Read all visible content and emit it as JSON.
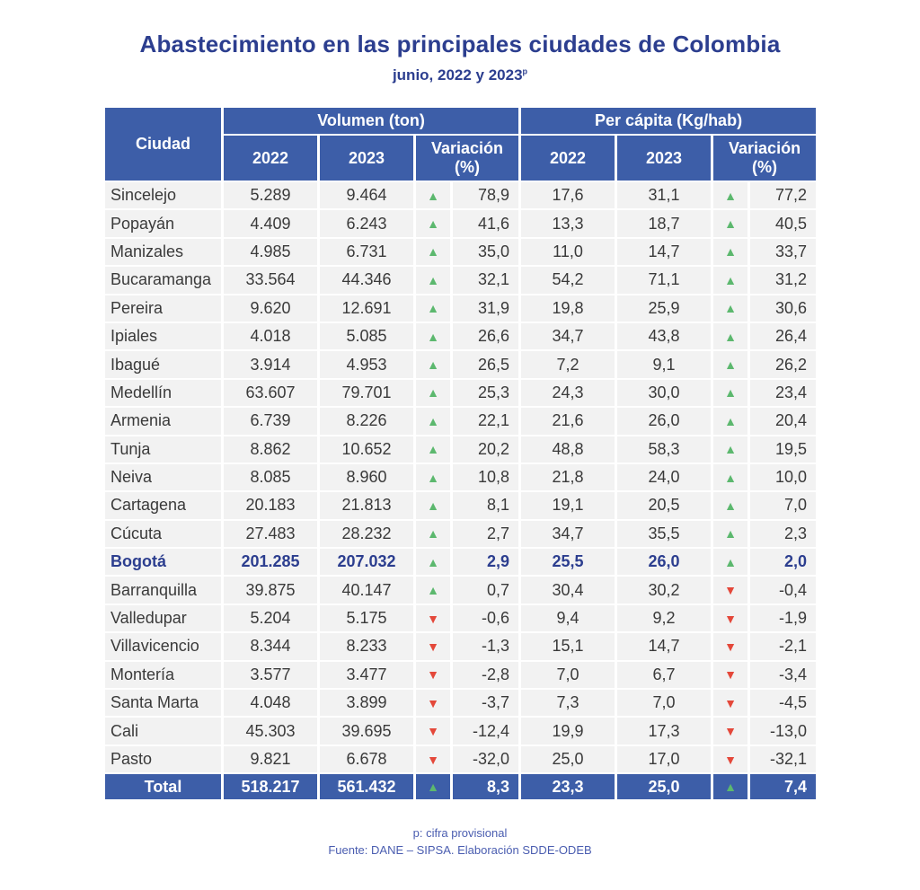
{
  "title": "Abastecimiento en las principales ciudades de Colombia",
  "subtitle": "junio, 2022 y 2023",
  "subtitle_mark": "p",
  "headers": {
    "city": "Ciudad",
    "volume_group": "Volumen (ton)",
    "percapita_group": "Per cápita (Kg/hab)",
    "y2022": "2022",
    "y2023": "2023",
    "variation": "Variación (%)"
  },
  "colors": {
    "header": "#3d5ea8",
    "up": "#5cb86e",
    "down": "#e4483a",
    "title": "#2c3e8f"
  },
  "rows": [
    {
      "city": "Sincelejo",
      "v2022": "5.289",
      "v2023": "9.464",
      "vdir": "up",
      "vvar": "78,9",
      "p2022": "17,6",
      "p2023": "31,1",
      "pdir": "up",
      "pvar": "77,2"
    },
    {
      "city": "Popayán",
      "v2022": "4.409",
      "v2023": "6.243",
      "vdir": "up",
      "vvar": "41,6",
      "p2022": "13,3",
      "p2023": "18,7",
      "pdir": "up",
      "pvar": "40,5"
    },
    {
      "city": "Manizales",
      "v2022": "4.985",
      "v2023": "6.731",
      "vdir": "up",
      "vvar": "35,0",
      "p2022": "11,0",
      "p2023": "14,7",
      "pdir": "up",
      "pvar": "33,7"
    },
    {
      "city": "Bucaramanga",
      "v2022": "33.564",
      "v2023": "44.346",
      "vdir": "up",
      "vvar": "32,1",
      "p2022": "54,2",
      "p2023": "71,1",
      "pdir": "up",
      "pvar": "31,2"
    },
    {
      "city": "Pereira",
      "v2022": "9.620",
      "v2023": "12.691",
      "vdir": "up",
      "vvar": "31,9",
      "p2022": "19,8",
      "p2023": "25,9",
      "pdir": "up",
      "pvar": "30,6"
    },
    {
      "city": "Ipiales",
      "v2022": "4.018",
      "v2023": "5.085",
      "vdir": "up",
      "vvar": "26,6",
      "p2022": "34,7",
      "p2023": "43,8",
      "pdir": "up",
      "pvar": "26,4"
    },
    {
      "city": "Ibagué",
      "v2022": "3.914",
      "v2023": "4.953",
      "vdir": "up",
      "vvar": "26,5",
      "p2022": "7,2",
      "p2023": "9,1",
      "pdir": "up",
      "pvar": "26,2"
    },
    {
      "city": "Medellín",
      "v2022": "63.607",
      "v2023": "79.701",
      "vdir": "up",
      "vvar": "25,3",
      "p2022": "24,3",
      "p2023": "30,0",
      "pdir": "up",
      "pvar": "23,4"
    },
    {
      "city": "Armenia",
      "v2022": "6.739",
      "v2023": "8.226",
      "vdir": "up",
      "vvar": "22,1",
      "p2022": "21,6",
      "p2023": "26,0",
      "pdir": "up",
      "pvar": "20,4"
    },
    {
      "city": "Tunja",
      "v2022": "8.862",
      "v2023": "10.652",
      "vdir": "up",
      "vvar": "20,2",
      "p2022": "48,8",
      "p2023": "58,3",
      "pdir": "up",
      "pvar": "19,5"
    },
    {
      "city": "Neiva",
      "v2022": "8.085",
      "v2023": "8.960",
      "vdir": "up",
      "vvar": "10,8",
      "p2022": "21,8",
      "p2023": "24,0",
      "pdir": "up",
      "pvar": "10,0"
    },
    {
      "city": "Cartagena",
      "v2022": "20.183",
      "v2023": "21.813",
      "vdir": "up",
      "vvar": "8,1",
      "p2022": "19,1",
      "p2023": "20,5",
      "pdir": "up",
      "pvar": "7,0"
    },
    {
      "city": "Cúcuta",
      "v2022": "27.483",
      "v2023": "28.232",
      "vdir": "up",
      "vvar": "2,7",
      "p2022": "34,7",
      "p2023": "35,5",
      "pdir": "up",
      "pvar": "2,3"
    },
    {
      "city": "Bogotá",
      "v2022": "201.285",
      "v2023": "207.032",
      "vdir": "up",
      "vvar": "2,9",
      "p2022": "25,5",
      "p2023": "26,0",
      "pdir": "up",
      "pvar": "2,0",
      "highlight": true
    },
    {
      "city": "Barranquilla",
      "v2022": "39.875",
      "v2023": "40.147",
      "vdir": "up",
      "vvar": "0,7",
      "p2022": "30,4",
      "p2023": "30,2",
      "pdir": "down",
      "pvar": "-0,4"
    },
    {
      "city": "Valledupar",
      "v2022": "5.204",
      "v2023": "5.175",
      "vdir": "down",
      "vvar": "-0,6",
      "p2022": "9,4",
      "p2023": "9,2",
      "pdir": "down",
      "pvar": "-1,9"
    },
    {
      "city": "Villavicencio",
      "v2022": "8.344",
      "v2023": "8.233",
      "vdir": "down",
      "vvar": "-1,3",
      "p2022": "15,1",
      "p2023": "14,7",
      "pdir": "down",
      "pvar": "-2,1"
    },
    {
      "city": "Montería",
      "v2022": "3.577",
      "v2023": "3.477",
      "vdir": "down",
      "vvar": "-2,8",
      "p2022": "7,0",
      "p2023": "6,7",
      "pdir": "down",
      "pvar": "-3,4"
    },
    {
      "city": "Santa Marta",
      "v2022": "4.048",
      "v2023": "3.899",
      "vdir": "down",
      "vvar": "-3,7",
      "p2022": "7,3",
      "p2023": "7,0",
      "pdir": "down",
      "pvar": "-4,5"
    },
    {
      "city": "Cali",
      "v2022": "45.303",
      "v2023": "39.695",
      "vdir": "down",
      "vvar": "-12,4",
      "p2022": "19,9",
      "p2023": "17,3",
      "pdir": "down",
      "pvar": "-13,0"
    },
    {
      "city": "Pasto",
      "v2022": "9.821",
      "v2023": "6.678",
      "vdir": "down",
      "vvar": "-32,0",
      "p2022": "25,0",
      "p2023": "17,0",
      "pdir": "down",
      "pvar": "-32,1"
    }
  ],
  "total": {
    "city": "Total",
    "v2022": "518.217",
    "v2023": "561.432",
    "vdir": "up",
    "vvar": "8,3",
    "p2022": "23,3",
    "p2023": "25,0",
    "pdir": "up",
    "pvar": "7,4"
  },
  "footnote": "p: cifra provisional",
  "source": "Fuente: DANE – SIPSA. Elaboración SDDE-ODEB"
}
